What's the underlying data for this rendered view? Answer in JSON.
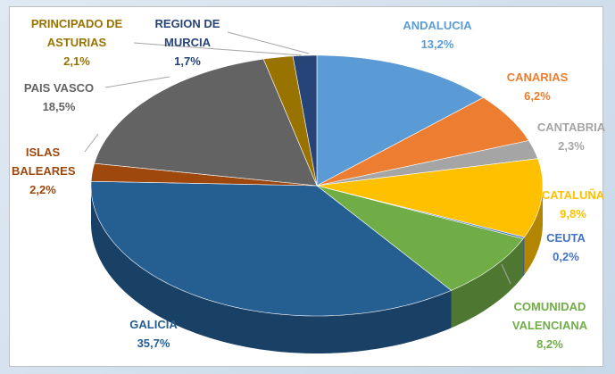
{
  "chart_data": {
    "type": "pie",
    "categories": [
      "ANDALUCIA",
      "CANARIAS",
      "CANTABRIA",
      "CATALUÑA",
      "CEUTA",
      "COMUNIDAD VALENCIANA",
      "GALICIA",
      "ISLAS BALEARES",
      "PAIS VASCO",
      "PRINCIPADO DE ASTURIAS",
      "REGION DE MURCIA"
    ],
    "values": [
      13.2,
      6.2,
      2.3,
      9.8,
      0.2,
      8.2,
      35.7,
      2.2,
      18.5,
      2.1,
      1.7
    ],
    "value_labels": [
      "13,2%",
      "6,2%",
      "2,3%",
      "9,8%",
      "0,2%",
      "8,2%",
      "35,7%",
      "2,2%",
      "18,5%",
      "2,1%",
      "1,7%"
    ],
    "colors": [
      "#5b9bd5",
      "#ed7d31",
      "#a5a5a5",
      "#ffc000",
      "#4472c4",
      "#70ad47",
      "#255e91",
      "#9e480e",
      "#636363",
      "#997300",
      "#264478"
    ]
  }
}
